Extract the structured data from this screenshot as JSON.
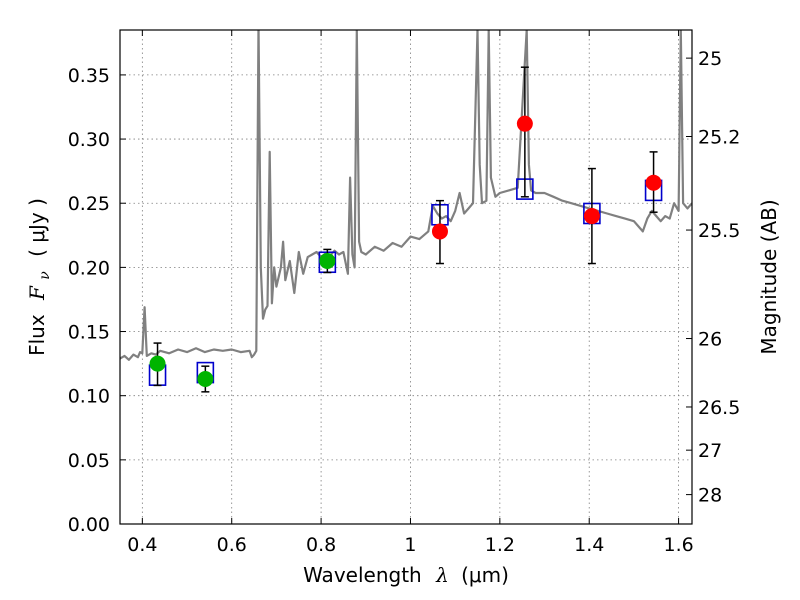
{
  "chart_data": {
    "type": "scatter",
    "xlabel_text": "Wavelength",
    "xlabel_symbol": "λ",
    "xlabel_unit": "(μm)",
    "ylabel_text": "Flux",
    "ylabel_symbol": "F",
    "ylabel_sub": "ν",
    "ylabel_unit": "( μJy )",
    "y2label": "Magnitude (AB)",
    "xlim": [
      0.35,
      1.63
    ],
    "ylim": [
      0.0,
      0.385
    ],
    "grid": true,
    "x_ticks": [
      0.4,
      0.6,
      0.8,
      1.0,
      1.2,
      1.4,
      1.6
    ],
    "x_tick_labels": [
      "0.4",
      "0.6",
      "0.8",
      "1",
      "1.2",
      "1.4",
      "1.6"
    ],
    "y_ticks": [
      0.0,
      0.05,
      0.1,
      0.15,
      0.2,
      0.25,
      0.3,
      0.35
    ],
    "y_tick_labels": [
      "0.00",
      "0.05",
      "0.10",
      "0.15",
      "0.20",
      "0.25",
      "0.30",
      "0.35"
    ],
    "mag_ticks": [
      {
        "mag": 25.0,
        "label": "25"
      },
      {
        "mag": 25.2,
        "label": "25.2"
      },
      {
        "mag": 25.5,
        "label": "25.5"
      },
      {
        "mag": 26.0,
        "label": "26"
      },
      {
        "mag": 26.5,
        "label": "26.5"
      },
      {
        "mag": 27.0,
        "label": "27"
      },
      {
        "mag": 28.0,
        "label": "28"
      }
    ],
    "colors": {
      "spectrum": "#808080",
      "model_box": "#0000cc",
      "green_point": "#00b400",
      "red_point": "#ff0000",
      "error_bar": "#000000",
      "grid": "#7f7f7f"
    },
    "series": [
      {
        "kind": "spectrum",
        "points": [
          [
            0.35,
            0.129
          ],
          [
            0.36,
            0.131
          ],
          [
            0.37,
            0.128
          ],
          [
            0.38,
            0.132
          ],
          [
            0.39,
            0.13
          ],
          [
            0.395,
            0.134
          ],
          [
            0.4,
            0.133
          ],
          [
            0.405,
            0.169
          ],
          [
            0.41,
            0.131
          ],
          [
            0.42,
            0.133
          ],
          [
            0.43,
            0.132
          ],
          [
            0.44,
            0.135
          ],
          [
            0.46,
            0.133
          ],
          [
            0.48,
            0.136
          ],
          [
            0.5,
            0.134
          ],
          [
            0.52,
            0.137
          ],
          [
            0.54,
            0.134
          ],
          [
            0.56,
            0.136
          ],
          [
            0.58,
            0.135
          ],
          [
            0.6,
            0.136
          ],
          [
            0.62,
            0.134
          ],
          [
            0.64,
            0.135
          ],
          [
            0.645,
            0.13
          ],
          [
            0.65,
            0.132
          ],
          [
            0.655,
            0.135
          ],
          [
            0.66,
            0.39
          ],
          [
            0.665,
            0.2
          ],
          [
            0.67,
            0.16
          ],
          [
            0.675,
            0.167
          ],
          [
            0.68,
            0.17
          ],
          [
            0.685,
            0.29
          ],
          [
            0.69,
            0.172
          ],
          [
            0.695,
            0.2
          ],
          [
            0.7,
            0.185
          ],
          [
            0.71,
            0.2
          ],
          [
            0.715,
            0.22
          ],
          [
            0.72,
            0.19
          ],
          [
            0.73,
            0.205
          ],
          [
            0.74,
            0.18
          ],
          [
            0.75,
            0.212
          ],
          [
            0.76,
            0.195
          ],
          [
            0.77,
            0.208
          ],
          [
            0.78,
            0.21
          ],
          [
            0.79,
            0.212
          ],
          [
            0.8,
            0.208
          ],
          [
            0.81,
            0.211
          ],
          [
            0.82,
            0.209
          ],
          [
            0.83,
            0.213
          ],
          [
            0.84,
            0.21
          ],
          [
            0.85,
            0.212
          ],
          [
            0.86,
            0.195
          ],
          [
            0.865,
            0.27
          ],
          [
            0.87,
            0.21
          ],
          [
            0.875,
            0.2
          ],
          [
            0.88,
            0.385
          ],
          [
            0.885,
            0.22
          ],
          [
            0.89,
            0.212
          ],
          [
            0.9,
            0.21
          ],
          [
            0.92,
            0.216
          ],
          [
            0.94,
            0.213
          ],
          [
            0.96,
            0.219
          ],
          [
            0.98,
            0.216
          ],
          [
            1.0,
            0.224
          ],
          [
            1.02,
            0.222
          ],
          [
            1.04,
            0.228
          ],
          [
            1.05,
            0.248
          ],
          [
            1.06,
            0.242
          ],
          [
            1.07,
            0.238
          ],
          [
            1.08,
            0.24
          ],
          [
            1.09,
            0.236
          ],
          [
            1.1,
            0.244
          ],
          [
            1.11,
            0.258
          ],
          [
            1.12,
            0.242
          ],
          [
            1.13,
            0.246
          ],
          [
            1.14,
            0.25
          ],
          [
            1.15,
            0.385
          ],
          [
            1.155,
            0.28
          ],
          [
            1.16,
            0.25
          ],
          [
            1.17,
            0.252
          ],
          [
            1.175,
            0.385
          ],
          [
            1.18,
            0.27
          ],
          [
            1.19,
            0.255
          ],
          [
            1.2,
            0.258
          ],
          [
            1.22,
            0.26
          ],
          [
            1.24,
            0.262
          ],
          [
            1.26,
            0.385
          ],
          [
            1.265,
            0.28
          ],
          [
            1.27,
            0.26
          ],
          [
            1.28,
            0.258
          ],
          [
            1.3,
            0.258
          ],
          [
            1.32,
            0.255
          ],
          [
            1.34,
            0.252
          ],
          [
            1.36,
            0.25
          ],
          [
            1.38,
            0.248
          ],
          [
            1.4,
            0.246
          ],
          [
            1.42,
            0.244
          ],
          [
            1.44,
            0.242
          ],
          [
            1.46,
            0.24
          ],
          [
            1.48,
            0.238
          ],
          [
            1.5,
            0.236
          ],
          [
            1.52,
            0.228
          ],
          [
            1.53,
            0.238
          ],
          [
            1.54,
            0.244
          ],
          [
            1.55,
            0.24
          ],
          [
            1.56,
            0.236
          ],
          [
            1.57,
            0.24
          ],
          [
            1.58,
            0.238
          ],
          [
            1.59,
            0.25
          ],
          [
            1.6,
            0.244
          ],
          [
            1.605,
            0.385
          ],
          [
            1.61,
            0.25
          ],
          [
            1.62,
            0.246
          ],
          [
            1.63,
            0.25
          ]
        ]
      },
      {
        "kind": "model_boxes",
        "points": [
          [
            0.434,
            0.116
          ],
          [
            0.541,
            0.118
          ],
          [
            0.814,
            0.204
          ],
          [
            1.066,
            0.241
          ],
          [
            1.256,
            0.261
          ],
          [
            1.406,
            0.242
          ],
          [
            1.544,
            0.26
          ]
        ]
      },
      {
        "kind": "green_points",
        "points": [
          {
            "x": 0.434,
            "y": 0.125,
            "err_lo": 0.017,
            "err_hi": 0.016
          },
          {
            "x": 0.541,
            "y": 0.113,
            "err_lo": 0.01,
            "err_hi": 0.01
          },
          {
            "x": 0.814,
            "y": 0.205,
            "err_lo": 0.009,
            "err_hi": 0.009
          }
        ]
      },
      {
        "kind": "red_points",
        "points": [
          {
            "x": 1.066,
            "y": 0.228,
            "err_lo": 0.025,
            "err_hi": 0.024
          },
          {
            "x": 1.256,
            "y": 0.312,
            "err_lo": 0.057,
            "err_hi": 0.044
          },
          {
            "x": 1.406,
            "y": 0.24,
            "err_lo": 0.037,
            "err_hi": 0.037
          },
          {
            "x": 1.544,
            "y": 0.266,
            "err_lo": 0.023,
            "err_hi": 0.024
          }
        ]
      }
    ]
  }
}
